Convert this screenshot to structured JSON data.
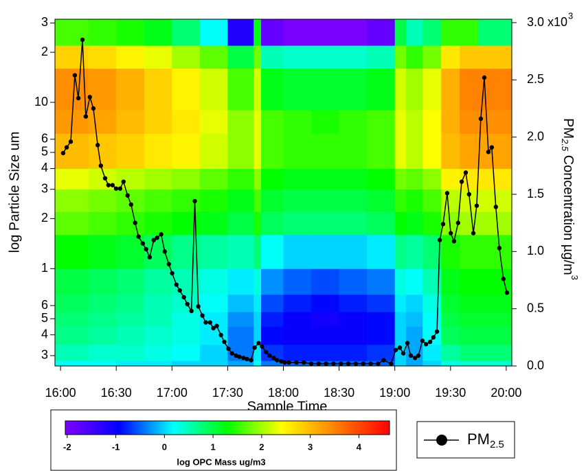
{
  "chart_data": {
    "type": "heatmap-line",
    "xlabel": "Sample Time",
    "ylabel": "log Particle Size um",
    "y2label": {
      "text": "PM",
      "sub": "2.5",
      "rest": " Concentration µg/m",
      "sup": "3"
    },
    "xlim": [
      957,
      1203
    ],
    "xticks": [
      {
        "value": 960,
        "label": "16:00"
      },
      {
        "value": 990,
        "label": "16:30"
      },
      {
        "value": 1020,
        "label": "17:00"
      },
      {
        "value": 1050,
        "label": "17:30"
      },
      {
        "value": 1080,
        "label": "18:00"
      },
      {
        "value": 1110,
        "label": "18:30"
      },
      {
        "value": 1140,
        "label": "19:00"
      },
      {
        "value": 1170,
        "label": "19:30"
      },
      {
        "value": 1200,
        "label": "20:00"
      }
    ],
    "ylim": [
      0.26,
      31.6
    ],
    "ylog": true,
    "yticks": [
      {
        "value": 30,
        "label": "3"
      },
      {
        "value": 20,
        "label": "2"
      },
      10,
      6,
      5,
      4,
      3,
      2,
      1,
      {
        "value": 0.6,
        "label": "6"
      },
      {
        "value": 0.5,
        "label": "5"
      },
      {
        "value": 0.4,
        "label": "4"
      },
      {
        "value": 0.3,
        "label": "3"
      }
    ],
    "y2lim": [
      0,
      3.03
    ],
    "y2ticks": [
      {
        "value": 0,
        "label": "0.0"
      },
      {
        "value": 0.5,
        "label": "0.5"
      },
      {
        "value": 1,
        "label": "1.0"
      },
      {
        "value": 1.5,
        "label": "1.5"
      },
      {
        "value": 2,
        "label": "2.0"
      },
      {
        "value": 2.5,
        "label": "2.5"
      },
      {
        "value": 3,
        "label": "3.0 x10"
      }
    ],
    "y2tick_exponent": "3",
    "heatmap": {
      "x_edges": [
        957,
        975,
        990,
        1005,
        1020,
        1035,
        1050,
        1064,
        1068,
        1080,
        1095,
        1110,
        1125,
        1140,
        1146,
        1155,
        1165,
        1175,
        1185,
        1203
      ],
      "y_edges": [
        0.26,
        0.28,
        0.35,
        0.45,
        0.55,
        0.7,
        1.0,
        1.6,
        2.2,
        3.0,
        4.0,
        6.5,
        9,
        16,
        22,
        31.6
      ],
      "values": [
        [
          0.2,
          0.2,
          0.1,
          0.1,
          0,
          0,
          -0.2,
          0.2,
          -0.4,
          -0.5,
          -0.5,
          -0.5,
          -0.5,
          0,
          -0.2,
          0,
          0.3,
          0.4,
          0.4
        ],
        [
          0.5,
          0.4,
          0.4,
          0.3,
          0.2,
          0,
          -0.4,
          0.1,
          -0.7,
          -0.8,
          -0.8,
          -0.8,
          -0.7,
          0,
          -0.2,
          0.1,
          0.6,
          0.8,
          0.8
        ],
        [
          0.7,
          0.6,
          0.5,
          0.4,
          0.3,
          0.1,
          -0.4,
          0,
          -0.9,
          -1.0,
          -1.0,
          -1.0,
          -0.9,
          0,
          -0.2,
          0.2,
          0.9,
          1.0,
          1.0
        ],
        [
          0.8,
          0.7,
          0.6,
          0.5,
          0.3,
          0.1,
          -0.3,
          0,
          -0.8,
          -1.0,
          -1.1,
          -1.0,
          -0.9,
          0,
          -0.1,
          0.2,
          1.0,
          1.1,
          1.1
        ],
        [
          0.9,
          0.8,
          0.7,
          0.5,
          0.4,
          0.2,
          -0.1,
          0.1,
          -0.6,
          -0.8,
          -0.9,
          -0.8,
          -0.7,
          0.1,
          0,
          0.3,
          1.1,
          1.2,
          1.2
        ],
        [
          1.0,
          0.9,
          0.8,
          0.6,
          0.5,
          0.3,
          0.1,
          0.3,
          -0.3,
          -0.5,
          -0.6,
          -0.5,
          -0.4,
          0.3,
          0.2,
          0.5,
          1.2,
          1.3,
          1.3
        ],
        [
          1.3,
          1.2,
          1.1,
          0.9,
          0.7,
          0.6,
          0.5,
          0.8,
          0.2,
          0,
          0,
          0,
          0.1,
          0.7,
          0.6,
          0.8,
          1.4,
          1.5,
          1.5
        ],
        [
          1.7,
          1.6,
          1.5,
          1.4,
          1.3,
          1.2,
          1.0,
          1.4,
          0.9,
          0.8,
          0.8,
          0.8,
          0.9,
          1.3,
          1.2,
          1.4,
          1.9,
          2.0,
          2.0
        ],
        [
          1.9,
          1.8,
          1.7,
          1.6,
          1.5,
          1.4,
          1.2,
          1.6,
          1.1,
          1.0,
          1.0,
          1.0,
          1.1,
          1.5,
          1.4,
          1.6,
          2.1,
          2.2,
          2.2
        ],
        [
          2.3,
          2.2,
          2.1,
          2.0,
          1.9,
          1.7,
          1.5,
          1.9,
          1.3,
          1.2,
          1.2,
          1.2,
          1.3,
          1.8,
          1.7,
          1.9,
          2.5,
          2.6,
          2.6
        ],
        [
          3.0,
          2.9,
          2.8,
          2.6,
          2.5,
          2.2,
          1.9,
          2.3,
          1.6,
          1.5,
          1.5,
          1.5,
          1.6,
          2.3,
          2.1,
          2.4,
          3.0,
          3.2,
          3.2
        ],
        [
          3.3,
          3.2,
          3.0,
          2.8,
          2.6,
          2.3,
          1.9,
          2.3,
          1.6,
          1.5,
          1.4,
          1.5,
          1.6,
          2.3,
          2.1,
          2.4,
          3.1,
          3.4,
          3.4
        ],
        [
          3.4,
          3.3,
          3.1,
          2.8,
          2.5,
          2.2,
          1.6,
          2.2,
          1.2,
          1.1,
          1.1,
          1.1,
          1.2,
          2.2,
          2.0,
          2.3,
          3.1,
          3.5,
          3.5
        ],
        [
          2.8,
          2.7,
          2.5,
          2.3,
          2.0,
          1.7,
          1.0,
          1.8,
          0.5,
          0.4,
          0.4,
          0.4,
          0.5,
          1.8,
          1.5,
          1.8,
          2.6,
          2.9,
          2.9
        ],
        [
          1.6,
          1.5,
          1.4,
          1.2,
          0.8,
          0.2,
          -1.2,
          1.2,
          -1.8,
          -2.0,
          -2.0,
          -2.0,
          -1.8,
          1.0,
          0.5,
          0.8,
          1.5,
          1.5,
          0.8
        ]
      ]
    },
    "colorbar": {
      "label": "log OPC Mass ug/m3",
      "lim": [
        -2.04,
        4.63
      ],
      "ticks": [
        -2,
        -1,
        0,
        1,
        2,
        3,
        4
      ],
      "colormap": [
        "#7f00ff",
        "#0000ff",
        "#00ffff",
        "#00ff00",
        "#ffff00",
        "#ff8000",
        "#ff0000"
      ]
    },
    "series": [
      {
        "name": {
          "text": "PM",
          "sub": "2.5"
        },
        "color": "#000000",
        "axis": "y2",
        "x": [
          961.4,
          963.3,
          965.5,
          967.7,
          969.6,
          971.8,
          973.6,
          975.8,
          977.7,
          980,
          981.7,
          984,
          985.8,
          988,
          989.9,
          992.1,
          993.9,
          996.1,
          998,
          1000.2,
          1002,
          1004.3,
          1006.1,
          1008,
          1010.2,
          1012,
          1014.2,
          1016.1,
          1018.3,
          1020.1,
          1022.4,
          1024.2,
          1026.4,
          1028.3,
          1030.5,
          1032.3,
          1034.2,
          1036.4,
          1038.2,
          1040.5,
          1042.3,
          1044.1,
          1046.4,
          1048.2,
          1050.4,
          1052.3,
          1054.5,
          1056.3,
          1058.5,
          1060.4,
          1062.6,
          1064.5,
          1066.7,
          1068.5,
          1070.7,
          1072.6,
          1074.8,
          1076.6,
          1078.9,
          1080.7,
          1083,
          1087,
          1091,
          1095,
          1099,
          1103,
          1107,
          1111,
          1115,
          1119,
          1123,
          1127,
          1131,
          1134,
          1138,
          1140.5,
          1142.7,
          1144.6,
          1146.8,
          1148.6,
          1150.9,
          1152.7,
          1154.9,
          1156.8,
          1159,
          1160.8,
          1162.7,
          1164.2,
          1166,
          1168.2,
          1170.1,
          1171.9,
          1174.1,
          1176,
          1178.2,
          1180,
          1182.3,
          1184.1,
          1186.3,
          1188.2,
          1190.4,
          1192.2,
          1194.4,
          1196.3,
          1198.5,
          1200.4
        ],
        "values": [
          1.86,
          1.91,
          1.96,
          2.54,
          2.34,
          2.85,
          2.18,
          2.35,
          2.25,
          1.93,
          1.75,
          1.64,
          1.58,
          1.58,
          1.55,
          1.55,
          1.61,
          1.49,
          1.41,
          1.25,
          1.13,
          1.07,
          1.02,
          0.95,
          1.1,
          1.12,
          1.15,
          1.0,
          0.89,
          0.81,
          0.71,
          0.66,
          0.6,
          0.54,
          0.48,
          1.44,
          0.52,
          0.44,
          0.38,
          0.38,
          0.33,
          0.35,
          0.27,
          0.21,
          0.15,
          0.11,
          0.09,
          0.08,
          0.07,
          0.06,
          0.05,
          0.16,
          0.2,
          0.17,
          0.12,
          0.09,
          0.07,
          0.05,
          0.04,
          0.03,
          0.03,
          0.03,
          0.03,
          0.02,
          0.02,
          0.02,
          0.02,
          0.02,
          0.02,
          0.02,
          0.02,
          0.02,
          0.02,
          0.05,
          0.02,
          0.14,
          0.16,
          0.11,
          0.2,
          0.09,
          0.07,
          0.09,
          0.22,
          0.19,
          0.21,
          0.25,
          0.3,
          1.1,
          1.24,
          1.51,
          1.16,
          1.09,
          1.25,
          1.61,
          1.69,
          1.5,
          1.16,
          1.4,
          2.16,
          2.52,
          1.87,
          1.91,
          1.39,
          1.03,
          0.76,
          0.64
        ]
      }
    ]
  }
}
